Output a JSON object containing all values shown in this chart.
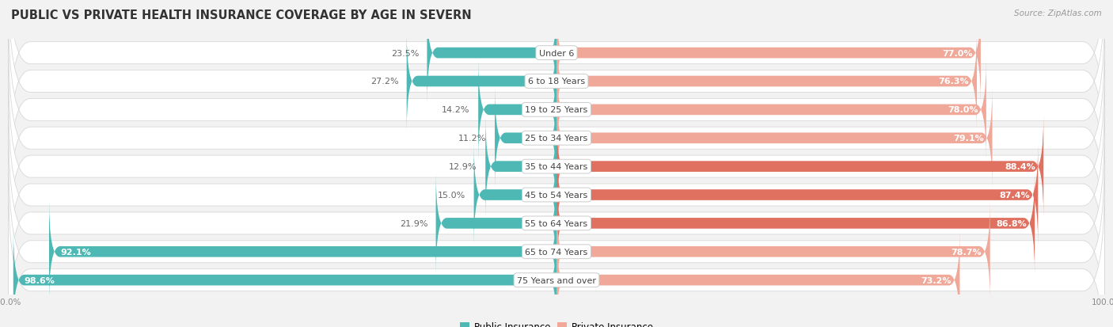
{
  "title": "PUBLIC VS PRIVATE HEALTH INSURANCE COVERAGE BY AGE IN SEVERN",
  "source": "Source: ZipAtlas.com",
  "categories": [
    "Under 6",
    "6 to 18 Years",
    "19 to 25 Years",
    "25 to 34 Years",
    "35 to 44 Years",
    "45 to 54 Years",
    "55 to 64 Years",
    "65 to 74 Years",
    "75 Years and over"
  ],
  "public_values": [
    23.5,
    27.2,
    14.2,
    11.2,
    12.9,
    15.0,
    21.9,
    92.1,
    98.6
  ],
  "private_values": [
    77.0,
    76.3,
    78.0,
    79.1,
    88.4,
    87.4,
    86.8,
    78.7,
    73.2
  ],
  "public_color": "#4db8b4",
  "private_color_light": "#f0a899",
  "private_color_dark": "#e07060",
  "private_dark_rows": [
    4,
    5,
    6
  ],
  "bg_color": "#f2f2f2",
  "row_bg": "#f8f8f8",
  "row_border": "#d8d8d8",
  "title_color": "#333333",
  "value_color_inside": "#ffffff",
  "value_color_outside": "#666666",
  "axis_label_color": "#888888",
  "legend_public": "Public Insurance",
  "legend_private": "Private Insurance",
  "title_fontsize": 10.5,
  "source_fontsize": 7.5,
  "bar_label_fontsize": 8.0,
  "category_fontsize": 8.0,
  "axis_fontsize": 7.5,
  "legend_fontsize": 8.5
}
